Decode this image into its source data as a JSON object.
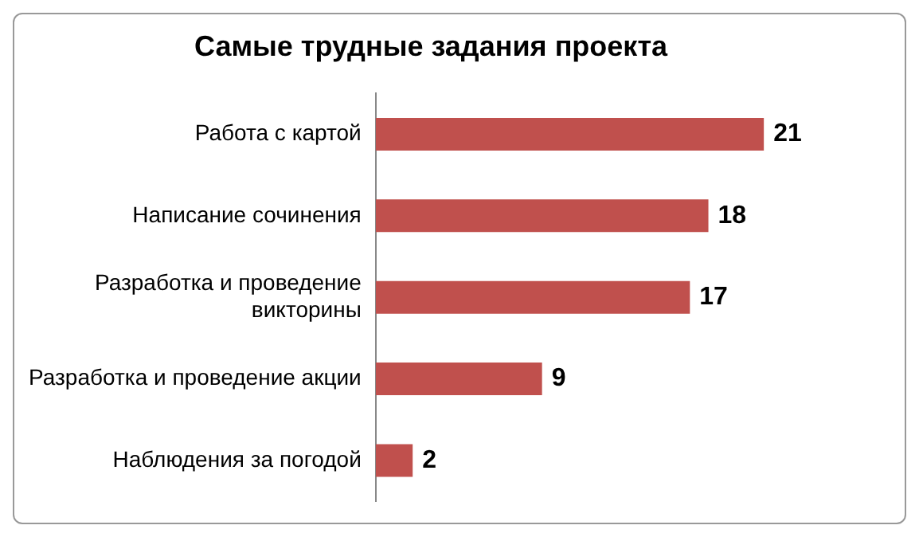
{
  "chart_data": {
    "type": "bar",
    "orientation": "horizontal",
    "title": "Самые трудные задания проекта",
    "categories": [
      "Работа с картой",
      "Написание сочинения",
      "Разработка и проведение викторины",
      "Разработка и проведение акции",
      "Наблюдения за погодой"
    ],
    "values": [
      21,
      18,
      17,
      9,
      2
    ],
    "color": "#c0504d",
    "data_labels": true,
    "grid": false,
    "legend": false
  }
}
